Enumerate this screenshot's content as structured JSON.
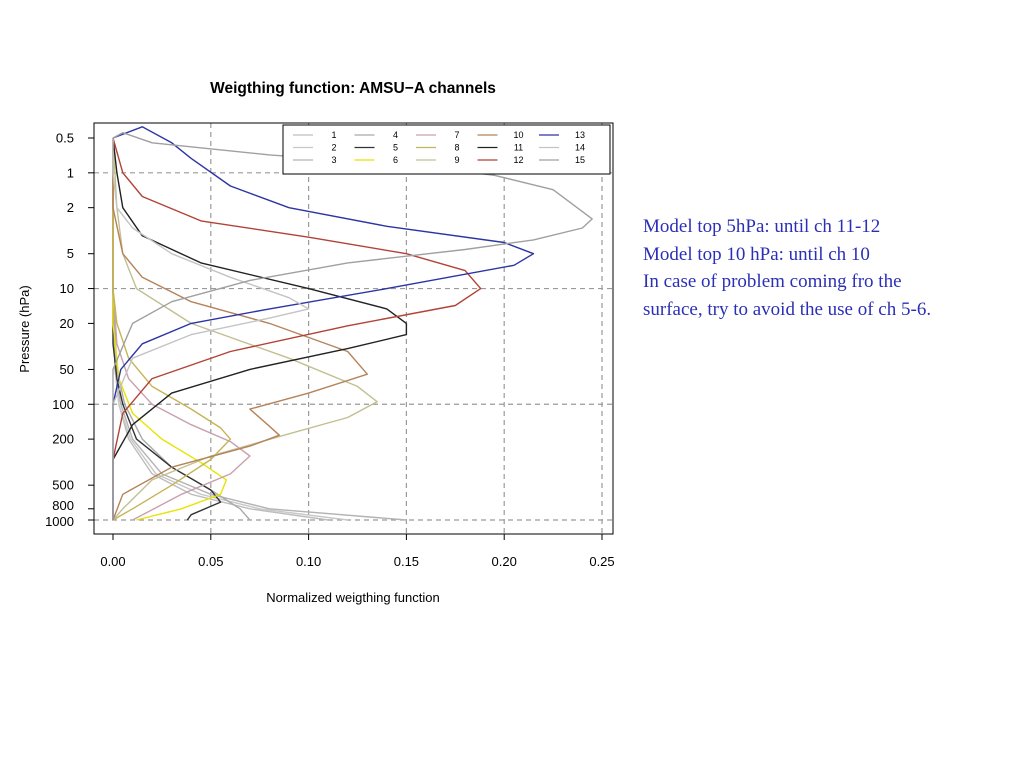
{
  "notes": {
    "lines": [
      "Model top 5hPa: until ch 11-12",
      "Model top 10 hPa: until ch 10",
      "In case of problem coming fro the",
      "surface, try to avoid the use of ch 5-6."
    ],
    "color": "#2b2fb6"
  },
  "chart_data": {
    "type": "line",
    "title": "Weigthing function: AMSU−A channels",
    "xlabel": "Normalized weigthing function",
    "ylabel": "Pressure (hPa)",
    "xlim": [
      0.0,
      0.25
    ],
    "ylim": [
      1000,
      0.5
    ],
    "y_scale": "log",
    "x_ticks": [
      "0.00",
      "0.05",
      "0.10",
      "0.15",
      "0.20",
      "0.25"
    ],
    "x_tick_values": [
      0.0,
      0.05,
      0.1,
      0.15,
      0.2,
      0.25
    ],
    "y_ticks": [
      "0.5",
      "1",
      "2",
      "5",
      "10",
      "20",
      "50",
      "100",
      "200",
      "500",
      "800",
      "1000"
    ],
    "y_tick_values": [
      0.5,
      1,
      2,
      5,
      10,
      20,
      50,
      100,
      200,
      500,
      800,
      1000
    ],
    "grid": "dashed",
    "legend_position": "top-right",
    "series": [
      {
        "name": "1",
        "color": "#bdbdbd",
        "points": [
          [
            0.0,
            0.5
          ],
          [
            0.0,
            10
          ],
          [
            0.001,
            50
          ],
          [
            0.003,
            100
          ],
          [
            0.008,
            200
          ],
          [
            0.02,
            400
          ],
          [
            0.04,
            600
          ],
          [
            0.07,
            800
          ],
          [
            0.11,
            1000
          ]
        ]
      },
      {
        "name": "2",
        "color": "#c8c8c8",
        "points": [
          [
            0.0,
            0.5
          ],
          [
            0.0,
            10
          ],
          [
            0.001,
            50
          ],
          [
            0.003,
            100
          ],
          [
            0.009,
            200
          ],
          [
            0.022,
            400
          ],
          [
            0.045,
            600
          ],
          [
            0.075,
            800
          ],
          [
            0.12,
            1000
          ]
        ]
      },
      {
        "name": "3",
        "color": "#b3b3b3",
        "points": [
          [
            0.0,
            0.5
          ],
          [
            0.0,
            10
          ],
          [
            0.001,
            50
          ],
          [
            0.004,
            100
          ],
          [
            0.01,
            200
          ],
          [
            0.025,
            400
          ],
          [
            0.05,
            600
          ],
          [
            0.08,
            800
          ],
          [
            0.15,
            1000
          ]
        ]
      },
      {
        "name": "4",
        "color": "#a9a9a9",
        "points": [
          [
            0.0,
            0.5
          ],
          [
            0.0,
            10
          ],
          [
            0.002,
            50
          ],
          [
            0.006,
            100
          ],
          [
            0.015,
            200
          ],
          [
            0.03,
            350
          ],
          [
            0.05,
            550
          ],
          [
            0.065,
            800
          ],
          [
            0.07,
            1000
          ]
        ]
      },
      {
        "name": "5",
        "color": "#333333",
        "points": [
          [
            0.0,
            0.5
          ],
          [
            0.0,
            10
          ],
          [
            0.0,
            30
          ],
          [
            0.002,
            60
          ],
          [
            0.005,
            100
          ],
          [
            0.012,
            200
          ],
          [
            0.03,
            350
          ],
          [
            0.05,
            550
          ],
          [
            0.055,
            700
          ],
          [
            0.04,
            900
          ],
          [
            0.038,
            1000
          ]
        ]
      },
      {
        "name": "6",
        "color": "#e8e300",
        "points": [
          [
            0.0,
            0.5
          ],
          [
            0.0,
            20
          ],
          [
            0.003,
            60
          ],
          [
            0.01,
            120
          ],
          [
            0.025,
            200
          ],
          [
            0.045,
            320
          ],
          [
            0.058,
            450
          ],
          [
            0.055,
            600
          ],
          [
            0.035,
            800
          ],
          [
            0.012,
            1000
          ]
        ]
      },
      {
        "name": "7",
        "color": "#c9a0ae",
        "points": [
          [
            0.0,
            0.5
          ],
          [
            0.0,
            10
          ],
          [
            0.002,
            30
          ],
          [
            0.008,
            60
          ],
          [
            0.02,
            100
          ],
          [
            0.04,
            150
          ],
          [
            0.06,
            210
          ],
          [
            0.07,
            280
          ],
          [
            0.06,
            400
          ],
          [
            0.035,
            600
          ],
          [
            0.01,
            1000
          ]
        ]
      },
      {
        "name": "8",
        "color": "#c5b455",
        "points": [
          [
            0.0,
            0.5
          ],
          [
            0.0,
            10
          ],
          [
            0.002,
            20
          ],
          [
            0.008,
            40
          ],
          [
            0.02,
            70
          ],
          [
            0.04,
            110
          ],
          [
            0.055,
            160
          ],
          [
            0.06,
            200
          ],
          [
            0.05,
            300
          ],
          [
            0.03,
            500
          ],
          [
            0.01,
            800
          ],
          [
            0.0,
            1000
          ]
        ]
      },
      {
        "name": "9",
        "color": "#c2c091",
        "points": [
          [
            0.0,
            0.5
          ],
          [
            0.002,
            2
          ],
          [
            0.005,
            5
          ],
          [
            0.012,
            10
          ],
          [
            0.04,
            20
          ],
          [
            0.09,
            40
          ],
          [
            0.125,
            70
          ],
          [
            0.135,
            95
          ],
          [
            0.12,
            130
          ],
          [
            0.09,
            180
          ],
          [
            0.05,
            280
          ],
          [
            0.02,
            450
          ],
          [
            0.005,
            800
          ],
          [
            0.0,
            1000
          ]
        ]
      },
      {
        "name": "10",
        "color": "#b5835a",
        "points": [
          [
            0.0,
            0.5
          ],
          [
            0.0,
            2
          ],
          [
            0.005,
            5
          ],
          [
            0.015,
            8
          ],
          [
            0.04,
            13
          ],
          [
            0.08,
            20
          ],
          [
            0.12,
            35
          ],
          [
            0.13,
            55
          ],
          [
            0.1,
            80
          ],
          [
            0.07,
            110
          ],
          [
            0.08,
            155
          ],
          [
            0.085,
            185
          ],
          [
            0.07,
            230
          ],
          [
            0.03,
            350
          ],
          [
            0.005,
            600
          ],
          [
            0.0,
            1000
          ]
        ]
      },
      {
        "name": "11",
        "color": "#222222",
        "points": [
          [
            0.0,
            0.5
          ],
          [
            0.002,
            1
          ],
          [
            0.005,
            2
          ],
          [
            0.015,
            3.5
          ],
          [
            0.045,
            6
          ],
          [
            0.1,
            10
          ],
          [
            0.14,
            15
          ],
          [
            0.15,
            20
          ],
          [
            0.15,
            25
          ],
          [
            0.12,
            33
          ],
          [
            0.07,
            50
          ],
          [
            0.03,
            80
          ],
          [
            0.01,
            150
          ],
          [
            0.0,
            300
          ],
          [
            0.0,
            1000
          ]
        ]
      },
      {
        "name": "12",
        "color": "#b24236",
        "points": [
          [
            0.0,
            0.5
          ],
          [
            0.005,
            1
          ],
          [
            0.015,
            1.6
          ],
          [
            0.045,
            2.6
          ],
          [
            0.1,
            3.6
          ],
          [
            0.15,
            5
          ],
          [
            0.18,
            7
          ],
          [
            0.188,
            10
          ],
          [
            0.175,
            14
          ],
          [
            0.12,
            21
          ],
          [
            0.06,
            35
          ],
          [
            0.02,
            60
          ],
          [
            0.005,
            120
          ],
          [
            0.0,
            300
          ],
          [
            0.0,
            1000
          ]
        ]
      },
      {
        "name": "13",
        "color": "#2c35a3",
        "points": [
          [
            0.0,
            0.5
          ],
          [
            0.015,
            0.4
          ],
          [
            0.03,
            0.55
          ],
          [
            0.04,
            0.75
          ],
          [
            0.06,
            1.3
          ],
          [
            0.09,
            2.0
          ],
          [
            0.14,
            2.9
          ],
          [
            0.2,
            4.0
          ],
          [
            0.215,
            5.0
          ],
          [
            0.205,
            6.3
          ],
          [
            0.14,
            10
          ],
          [
            0.08,
            15
          ],
          [
            0.04,
            20
          ],
          [
            0.015,
            30
          ],
          [
            0.004,
            50
          ],
          [
            0.0,
            100
          ],
          [
            0.0,
            1000
          ]
        ]
      },
      {
        "name": "14",
        "color": "#c4c4c4",
        "points": [
          [
            0.0,
            0.5
          ],
          [
            0.0,
            1
          ],
          [
            0.002,
            2
          ],
          [
            0.01,
            3
          ],
          [
            0.03,
            5
          ],
          [
            0.06,
            8
          ],
          [
            0.09,
            12
          ],
          [
            0.1,
            15
          ],
          [
            0.08,
            18
          ],
          [
            0.04,
            25
          ],
          [
            0.01,
            40
          ],
          [
            0.0,
            100
          ],
          [
            0.0,
            1000
          ]
        ]
      },
      {
        "name": "15",
        "color": "#a0a0a0",
        "points": [
          [
            0.0,
            0.5
          ],
          [
            0.005,
            0.45
          ],
          [
            0.02,
            0.55
          ],
          [
            0.08,
            0.7
          ],
          [
            0.15,
            0.85
          ],
          [
            0.195,
            1.05
          ],
          [
            0.225,
            1.4
          ],
          [
            0.245,
            2.5
          ],
          [
            0.24,
            3.0
          ],
          [
            0.215,
            3.8
          ],
          [
            0.18,
            4.6
          ],
          [
            0.12,
            6.0
          ],
          [
            0.07,
            8.5
          ],
          [
            0.03,
            13
          ],
          [
            0.01,
            20
          ],
          [
            0.0,
            50
          ],
          [
            0.0,
            1000
          ]
        ]
      }
    ]
  }
}
